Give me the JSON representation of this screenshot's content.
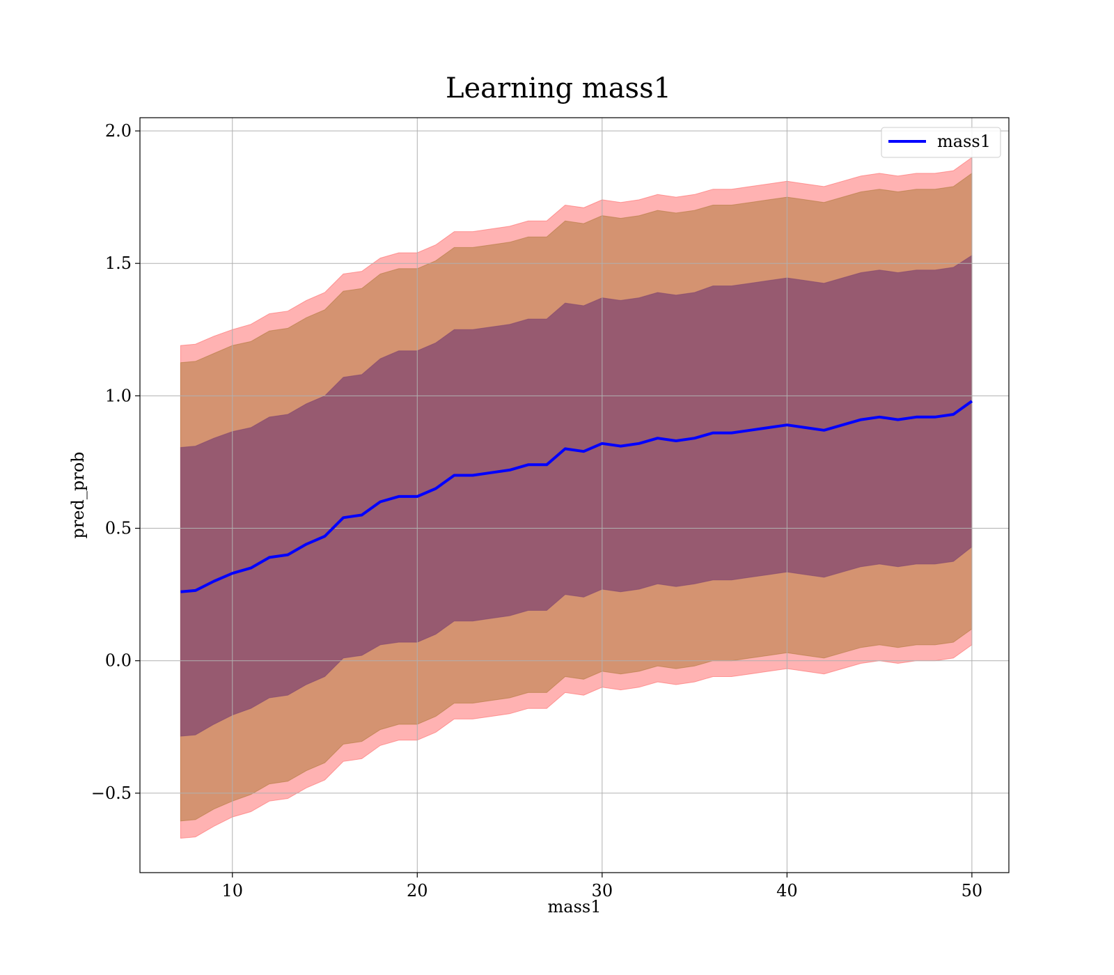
{
  "chart_data": {
    "type": "area",
    "title": "Learning mass1",
    "xlabel": "mass1",
    "ylabel": "pred_prob",
    "xlim": [
      5.0,
      52.0
    ],
    "ylim": [
      -0.8,
      2.05
    ],
    "xticks": [
      10,
      20,
      30,
      40,
      50
    ],
    "yticks": [
      -0.5,
      0.0,
      0.5,
      1.0,
      1.5,
      2.0
    ],
    "xtick_labels": [
      "10",
      "20",
      "30",
      "40",
      "50"
    ],
    "ytick_labels": [
      "−0.5",
      "0.0",
      "0.5",
      "1.0",
      "1.5",
      "2.0"
    ],
    "grid": true,
    "legend": {
      "position": "top-right",
      "entries": [
        "mass1"
      ]
    },
    "colors": {
      "line": "#0000ff",
      "band_outer": "#ff6666",
      "band_middle": "#b07a3c",
      "band_inner": "#7f4470",
      "grid": "#b0b0b0"
    },
    "series": [
      {
        "name": "mass1",
        "x": [
          7.2,
          8.0,
          9.0,
          10.0,
          11.0,
          12.0,
          13.0,
          14.0,
          15.0,
          16.0,
          17.0,
          18.0,
          19.0,
          20.0,
          21.0,
          22.0,
          23.0,
          24.0,
          25.0,
          26.0,
          27.0,
          28.0,
          29.0,
          30.0,
          31.0,
          32.0,
          33.0,
          34.0,
          35.0,
          36.0,
          37.0,
          38.0,
          39.0,
          40.0,
          41.0,
          42.0,
          43.0,
          44.0,
          45.0,
          46.0,
          47.0,
          48.0,
          49.0,
          50.0
        ],
        "mean": [
          0.26,
          0.265,
          0.3,
          0.33,
          0.35,
          0.39,
          0.4,
          0.44,
          0.47,
          0.54,
          0.55,
          0.6,
          0.62,
          0.62,
          0.65,
          0.7,
          0.7,
          0.71,
          0.72,
          0.74,
          0.74,
          0.8,
          0.79,
          0.82,
          0.81,
          0.82,
          0.84,
          0.83,
          0.84,
          0.86,
          0.86,
          0.87,
          0.88,
          0.89,
          0.88,
          0.87,
          0.89,
          0.91,
          0.92,
          0.91,
          0.92,
          0.92,
          0.93,
          0.98
        ],
        "band_1sigma": [
          0.545,
          0.545,
          0.54,
          0.535,
          0.53,
          0.53,
          0.53,
          0.53,
          0.53,
          0.53,
          0.53,
          0.54,
          0.55,
          0.55,
          0.55,
          0.55,
          0.55,
          0.55,
          0.55,
          0.55,
          0.55,
          0.55,
          0.55,
          0.55,
          0.55,
          0.55,
          0.55,
          0.55,
          0.55,
          0.555,
          0.555,
          0.555,
          0.555,
          0.555,
          0.555,
          0.555,
          0.555,
          0.555,
          0.555,
          0.555,
          0.555,
          0.555,
          0.555,
          0.55
        ],
        "band_2sigma": [
          0.865,
          0.865,
          0.86,
          0.86,
          0.855,
          0.855,
          0.855,
          0.855,
          0.855,
          0.855,
          0.855,
          0.86,
          0.86,
          0.86,
          0.86,
          0.86,
          0.86,
          0.86,
          0.86,
          0.86,
          0.86,
          0.86,
          0.86,
          0.86,
          0.86,
          0.86,
          0.86,
          0.86,
          0.86,
          0.86,
          0.86,
          0.86,
          0.86,
          0.86,
          0.86,
          0.86,
          0.86,
          0.86,
          0.86,
          0.86,
          0.86,
          0.86,
          0.86,
          0.86
        ],
        "band_3sigma": [
          0.93,
          0.93,
          0.925,
          0.92,
          0.92,
          0.92,
          0.92,
          0.92,
          0.92,
          0.92,
          0.92,
          0.92,
          0.92,
          0.92,
          0.92,
          0.92,
          0.92,
          0.92,
          0.92,
          0.92,
          0.92,
          0.92,
          0.92,
          0.92,
          0.92,
          0.92,
          0.92,
          0.92,
          0.92,
          0.92,
          0.92,
          0.92,
          0.92,
          0.92,
          0.92,
          0.92,
          0.92,
          0.92,
          0.92,
          0.92,
          0.92,
          0.92,
          0.92,
          0.92
        ]
      }
    ]
  }
}
